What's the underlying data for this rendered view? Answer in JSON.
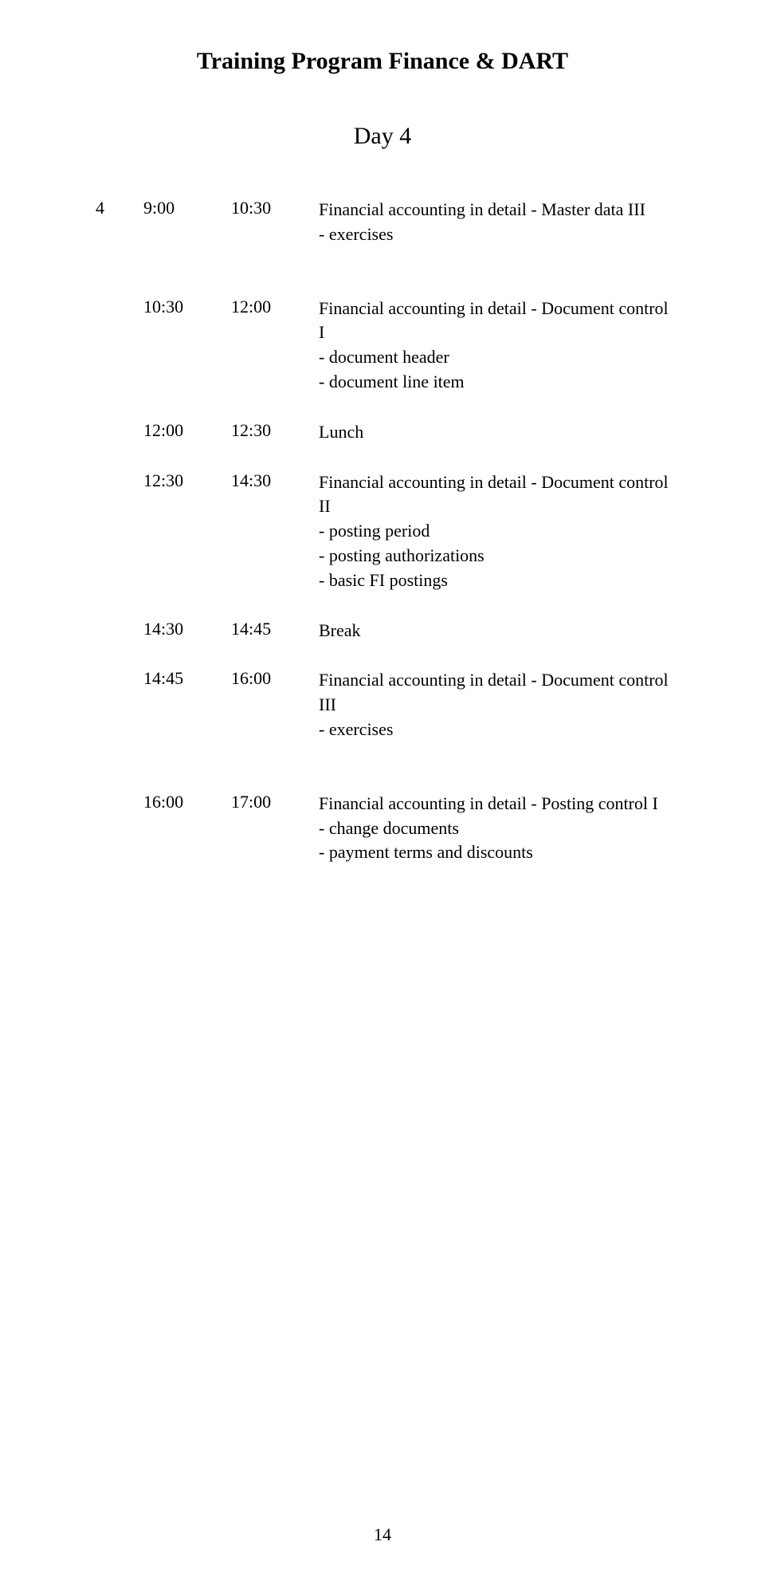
{
  "header": {
    "title": "Training Program Finance & DART",
    "day": "Day 4"
  },
  "schedule": {
    "rows": [
      {
        "num": "4",
        "start": "9:00",
        "end": "10:30",
        "title": "Financial accounting in detail - Master data III",
        "items": [
          "- exercises"
        ],
        "gap_after": true
      },
      {
        "num": "",
        "start": "10:30",
        "end": "12:00",
        "title": "Financial accounting in detail - Document control I",
        "items": [
          "- document header",
          "- document line item"
        ]
      },
      {
        "num": "",
        "start": "12:00",
        "end": "12:30",
        "title": "Lunch",
        "items": []
      },
      {
        "num": "",
        "start": "12:30",
        "end": "14:30",
        "title": "Financial accounting in detail - Document control II",
        "items": [
          "- posting period",
          "- posting authorizations",
          "- basic FI postings"
        ]
      },
      {
        "num": "",
        "start": "14:30",
        "end": "14:45",
        "title": "Break",
        "items": []
      },
      {
        "num": "",
        "start": "14:45",
        "end": "16:00",
        "title": "Financial accounting in detail - Document control III",
        "items": [
          "- exercises"
        ],
        "gap_after": true
      },
      {
        "num": "",
        "start": "16:00",
        "end": "17:00",
        "title": "Financial accounting in detail - Posting control I",
        "items": [
          "- change documents",
          "- payment terms and discounts"
        ]
      }
    ]
  },
  "page_number": "14"
}
